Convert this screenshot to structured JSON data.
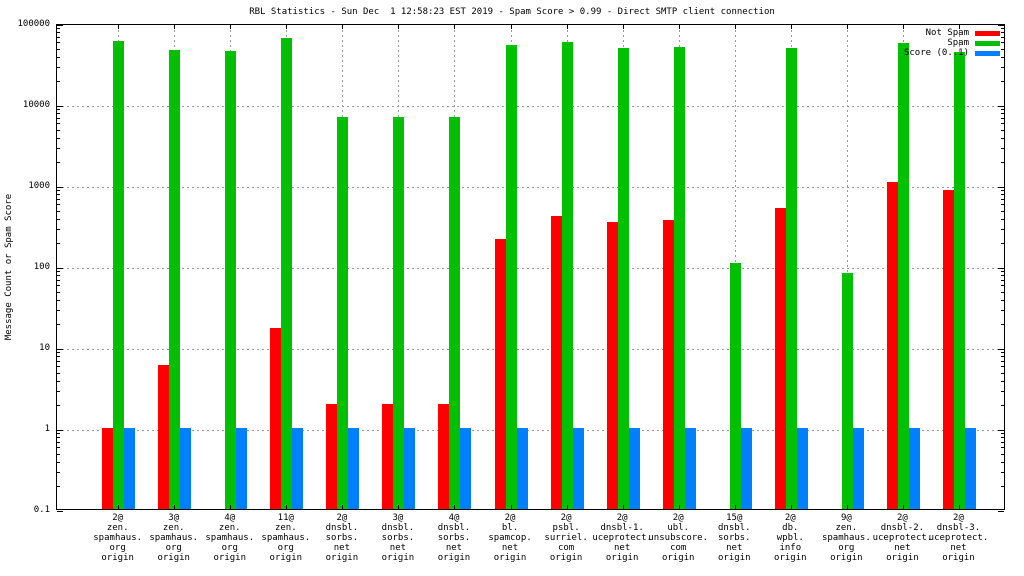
{
  "title": "RBL Statistics - Sun Dec  1 12:58:23 EST 2019 - Spam Score > 0.99 - Direct SMTP client connection",
  "ylabel": "Message Count or Spam Score",
  "chart_data": {
    "type": "bar",
    "title": "RBL Statistics - Sun Dec  1 12:58:23 EST 2019 - Spam Score > 0.99 - Direct SMTP client connection",
    "xlabel": "",
    "ylabel": "Message Count or Spam Score",
    "yscale": "log",
    "ylim": [
      0.1,
      100000
    ],
    "ytick_labels": [
      "100000",
      "10000",
      "1000",
      "100",
      "10",
      "1",
      "0.1"
    ],
    "grid": true,
    "legend_position": "top-right",
    "categories": [
      [
        "2@",
        "zen.",
        "spamhaus.",
        "org",
        "origin"
      ],
      [
        "3@",
        "zen.",
        "spamhaus.",
        "org",
        "origin"
      ],
      [
        "4@",
        "zen.",
        "spamhaus.",
        "org",
        "origin"
      ],
      [
        "11@",
        "zen.",
        "spamhaus.",
        "org",
        "origin"
      ],
      [
        "2@",
        "dnsbl.",
        "sorbs.",
        "net",
        "origin"
      ],
      [
        "3@",
        "dnsbl.",
        "sorbs.",
        "net",
        "origin"
      ],
      [
        "4@",
        "dnsbl.",
        "sorbs.",
        "net",
        "origin"
      ],
      [
        "2@",
        "bl.",
        "spamcop.",
        "net",
        "origin"
      ],
      [
        "2@",
        "psbl.",
        "surriel.",
        "com",
        "origin"
      ],
      [
        "2@",
        "dnsbl-1.",
        "uceprotect.",
        "net",
        "origin"
      ],
      [
        "2@",
        "ubl.",
        "unsubscore.",
        "com",
        "origin"
      ],
      [
        "15@",
        "dnsbl.",
        "sorbs.",
        "net",
        "origin"
      ],
      [
        "2@",
        "db.",
        "wpbl.",
        "info",
        "origin"
      ],
      [
        "9@",
        "zen.",
        "spamhaus.",
        "org",
        "origin"
      ],
      [
        "2@",
        "dnsbl-2.",
        "uceprotect.",
        "net",
        "origin"
      ],
      [
        "2@",
        "dnsbl-3.",
        "uceprotect.",
        "net",
        "origin"
      ]
    ],
    "series": [
      {
        "name": "Not Spam",
        "color": "#ff0000",
        "values": [
          1,
          6,
          0,
          17,
          2,
          2,
          2,
          215,
          410,
          350,
          370,
          0,
          520,
          0,
          1100,
          870
        ]
      },
      {
        "name": "Spam",
        "color": "#00c000",
        "values": [
          60000,
          46000,
          45000,
          65000,
          7000,
          7000,
          7000,
          53000,
          58000,
          49000,
          51000,
          110,
          49000,
          82,
          57000,
          44000
        ]
      },
      {
        "name": "Score (0..1)",
        "color": "#0080ff",
        "values": [
          1,
          1,
          1,
          1,
          1,
          1,
          1,
          1,
          1,
          1,
          1,
          1,
          1,
          1,
          1,
          1
        ]
      }
    ]
  },
  "colors": {
    "not_spam": "#ff0000",
    "spam": "#00c000",
    "score": "#0080ff",
    "grid": "#9a9a9a",
    "border": "#000000"
  }
}
